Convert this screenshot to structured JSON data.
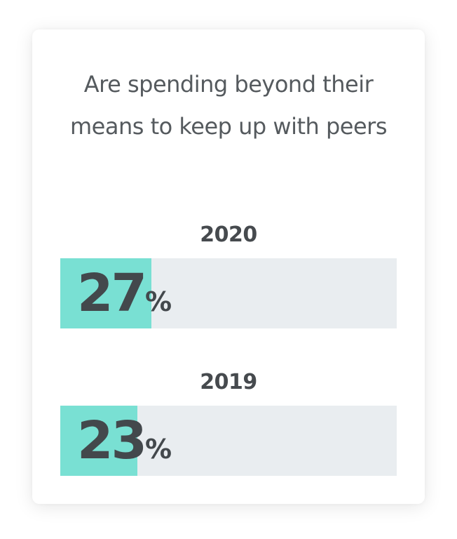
{
  "chart_data": {
    "type": "bar",
    "title": "Are spending beyond their means to keep up with peers",
    "categories": [
      "2020",
      "2019"
    ],
    "values": [
      27,
      23
    ],
    "unit": "%",
    "value_labels": [
      "27",
      "23"
    ],
    "xlim": [
      0,
      100
    ],
    "orientation": "horizontal",
    "bar_color": "#79e0d3",
    "track_color": "#e9edf0",
    "text_color": "#43484c",
    "grid": false,
    "legend": false
  }
}
